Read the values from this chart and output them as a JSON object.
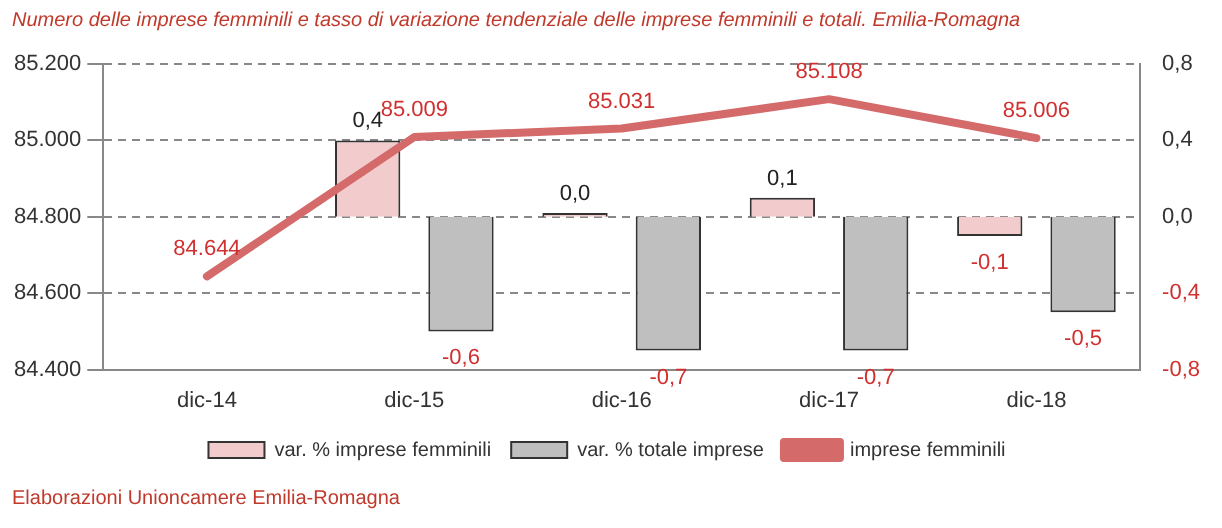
{
  "chart_data": {
    "type": "bar",
    "title": "Numero delle imprese femminili e tasso di variazione tendenziale delle imprese femminili e totali. Emilia-Romagna",
    "categories": [
      "dic-14",
      "dic-15",
      "dic-16",
      "dic-17",
      "dic-18"
    ],
    "series": [
      {
        "name": "var. % imprese femminili",
        "axis": "y2",
        "color": "#f2cccc",
        "values": [
          null,
          0.4,
          0.02,
          0.1,
          -0.1
        ],
        "value_labels": [
          null,
          "0,4",
          "0,0",
          "0,1",
          "-0,1"
        ]
      },
      {
        "name": "var. % totale imprese",
        "axis": "y2",
        "color": "#bfbfbf",
        "values": [
          null,
          -0.6,
          -0.7,
          -0.7,
          -0.5
        ],
        "value_labels": [
          null,
          "-0,6",
          "-0,7",
          "-0,7",
          "-0,5"
        ]
      },
      {
        "name": "imprese femminili",
        "type": "line",
        "axis": "y",
        "color": "#d46a6a",
        "values": [
          84644,
          85009,
          85031,
          85108,
          85006
        ],
        "value_labels": [
          "84.644",
          "85.009",
          "85.031",
          "85.108",
          "85.006"
        ]
      }
    ],
    "ylim": [
      84400,
      85200
    ],
    "yticks": [
      {
        "value": 84400,
        "label": "84.400"
      },
      {
        "value": 84600,
        "label": "84.600"
      },
      {
        "value": 84800,
        "label": "84.800"
      },
      {
        "value": 85000,
        "label": "85.000"
      },
      {
        "value": 85200,
        "label": "85.200"
      }
    ],
    "y2lim": [
      -0.8,
      0.8
    ],
    "y2ticks": [
      {
        "value": -0.8,
        "label": "-0,8"
      },
      {
        "value": -0.4,
        "label": "-0,4"
      },
      {
        "value": 0,
        "label": "0,0"
      },
      {
        "value": 0.4,
        "label": "0,4"
      },
      {
        "value": 0.8,
        "label": "0,8"
      }
    ],
    "grid": "y",
    "legend": "bottom",
    "marker": "none",
    "line_style": "solid",
    "annotations": [
      "Elaborazioni Unioncamere Emilia-Romagna"
    ]
  }
}
